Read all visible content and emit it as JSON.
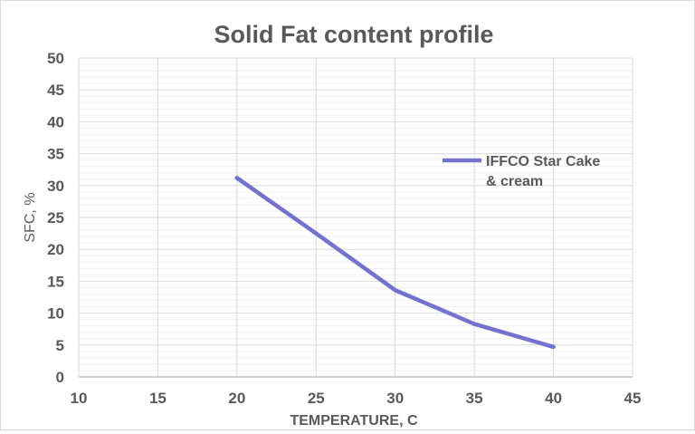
{
  "chart_data": {
    "type": "line",
    "title": "Solid Fat content profile",
    "xlabel": "TEMPERATURE, C",
    "ylabel": "SFC, %",
    "xlim": [
      10,
      45
    ],
    "ylim": [
      0,
      50
    ],
    "xticks": [
      10,
      15,
      20,
      25,
      30,
      35,
      40,
      45
    ],
    "yticks": [
      0,
      5,
      10,
      15,
      20,
      25,
      30,
      35,
      40,
      45,
      50
    ],
    "grid": true,
    "legend_position": "right",
    "series": [
      {
        "name": "IFFCO Star Cake & cream",
        "legend_lines": [
          "IFFCO Star Cake",
          "& cream"
        ],
        "color": "#7471d0",
        "x": [
          20,
          25,
          30,
          35,
          40
        ],
        "y": [
          31.2,
          22.5,
          13.6,
          8.3,
          4.7
        ]
      }
    ]
  }
}
